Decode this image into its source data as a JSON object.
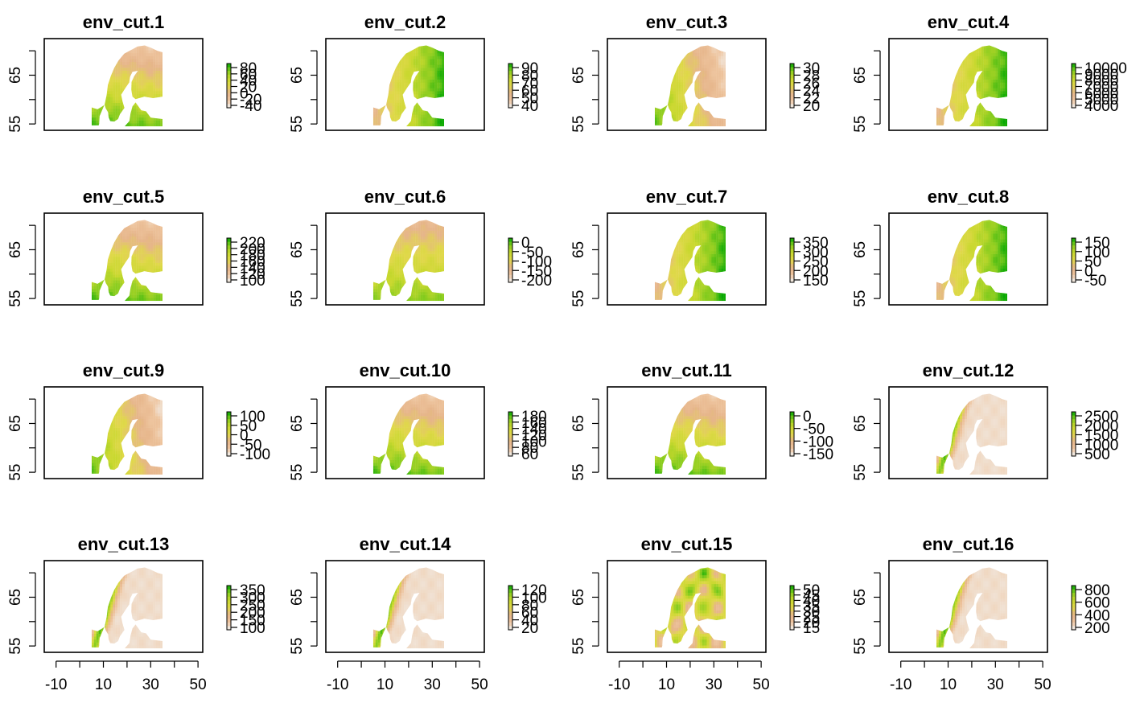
{
  "chart_data": {
    "type": "heatmap",
    "layout": "4x4 panel grid",
    "color_ramp": [
      "#F2F2F2",
      "#EEC59F",
      "#E6B58A",
      "#E0D84A",
      "#C8D82E",
      "#86CC1E",
      "#00A600"
    ],
    "x_axis": {
      "ticks": [
        -10,
        10,
        30,
        50
      ],
      "minor_step": 10,
      "range": [
        -15,
        52
      ]
    },
    "y_axis": {
      "ticks": [
        55,
        65
      ],
      "range": [
        53.7,
        72.5
      ]
    },
    "region_extent": {
      "lon": [
        5,
        35
      ],
      "lat": [
        54.5,
        71.2
      ]
    },
    "panels": [
      {
        "title": "env_cut.1",
        "legend_labels": [
          "80",
          "60",
          "40",
          "20",
          "0",
          "-20",
          "-40"
        ],
        "pattern": "north_low"
      },
      {
        "title": "env_cut.2",
        "legend_labels": [
          "90",
          "80",
          "70",
          "60",
          "50",
          "40"
        ],
        "pattern": "east_high"
      },
      {
        "title": "env_cut.3",
        "legend_labels": [
          "30",
          "28",
          "26",
          "24",
          "22",
          "20"
        ],
        "pattern": "west_high"
      },
      {
        "title": "env_cut.4",
        "legend_labels": [
          "10000",
          "9000",
          "8000",
          "7000",
          "6000",
          "5000",
          "4000"
        ],
        "pattern": "east_high"
      },
      {
        "title": "env_cut.5",
        "legend_labels": [
          "220",
          "200",
          "180",
          "160",
          "140",
          "120",
          "100"
        ],
        "pattern": "north_low"
      },
      {
        "title": "env_cut.6",
        "legend_labels": [
          "0",
          "-50",
          "-100",
          "-150",
          "-200"
        ],
        "pattern": "north_low_weak"
      },
      {
        "title": "env_cut.7",
        "legend_labels": [
          "350",
          "300",
          "250",
          "200",
          "150"
        ],
        "pattern": "east_high"
      },
      {
        "title": "env_cut.8",
        "legend_labels": [
          "150",
          "100",
          "50",
          "0",
          "-50"
        ],
        "pattern": "east_high"
      },
      {
        "title": "env_cut.9",
        "legend_labels": [
          "100",
          "50",
          "0",
          "-50",
          "-100"
        ],
        "pattern": "west_high"
      },
      {
        "title": "env_cut.10",
        "legend_labels": [
          "180",
          "160",
          "140",
          "120",
          "100",
          "80",
          "60"
        ],
        "pattern": "north_low"
      },
      {
        "title": "env_cut.11",
        "legend_labels": [
          "0",
          "-50",
          "-100",
          "-150"
        ],
        "pattern": "north_low"
      },
      {
        "title": "env_cut.12",
        "legend_labels": [
          "2500",
          "2000",
          "1500",
          "1000",
          "500"
        ],
        "pattern": "coast_high"
      },
      {
        "title": "env_cut.13",
        "legend_labels": [
          "350",
          "300",
          "250",
          "200",
          "150",
          "100"
        ],
        "pattern": "coast_high"
      },
      {
        "title": "env_cut.14",
        "legend_labels": [
          "120",
          "100",
          "80",
          "60",
          "40",
          "20"
        ],
        "pattern": "coast_high"
      },
      {
        "title": "env_cut.15",
        "legend_labels": [
          "50",
          "45",
          "40",
          "35",
          "30",
          "25",
          "20",
          "15"
        ],
        "pattern": "patchy"
      },
      {
        "title": "env_cut.16",
        "legend_labels": [
          "800",
          "600",
          "400",
          "200"
        ],
        "pattern": "coast_high"
      }
    ]
  }
}
